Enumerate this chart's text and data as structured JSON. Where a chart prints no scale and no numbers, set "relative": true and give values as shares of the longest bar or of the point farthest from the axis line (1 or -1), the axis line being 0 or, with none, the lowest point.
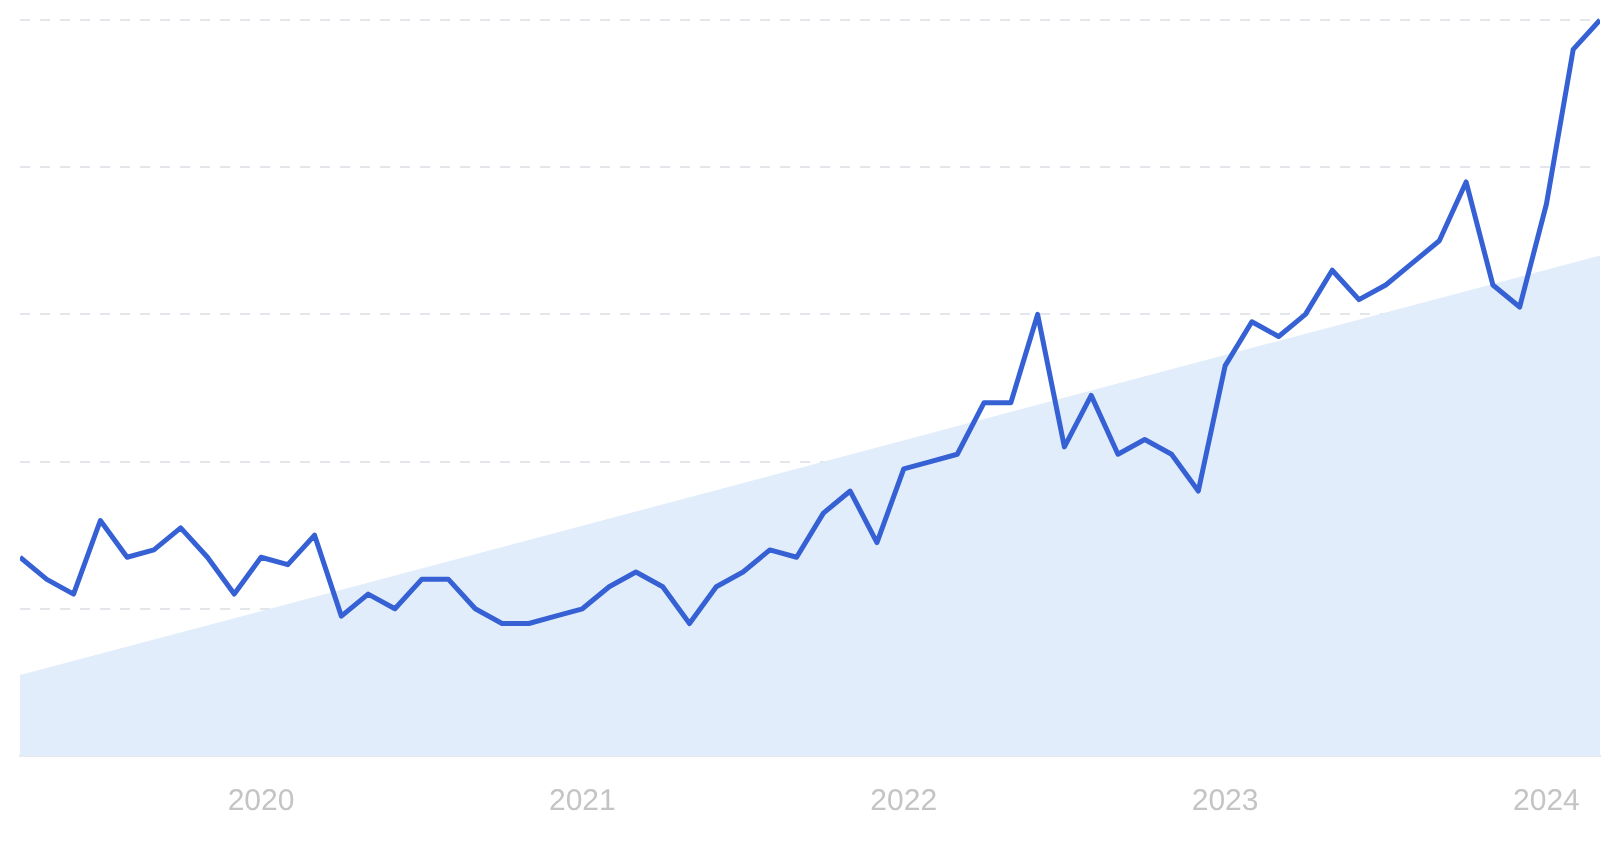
{
  "chart_data": {
    "type": "line",
    "relative": true,
    "grid": "y",
    "line_style": "solid",
    "marker": "none",
    "xlim": [
      "2019-04",
      "2024-03"
    ],
    "xticks": [
      "2020",
      "2021",
      "2022",
      "2023",
      "2024"
    ],
    "x": [
      "2019-04",
      "2019-05",
      "2019-06",
      "2019-07",
      "2019-08",
      "2019-09",
      "2019-10",
      "2019-11",
      "2019-12",
      "2020-01",
      "2020-02",
      "2020-03",
      "2020-04",
      "2020-05",
      "2020-06",
      "2020-07",
      "2020-08",
      "2020-09",
      "2020-10",
      "2020-11",
      "2020-12",
      "2021-01",
      "2021-02",
      "2021-03",
      "2021-04",
      "2021-05",
      "2021-06",
      "2021-07",
      "2021-08",
      "2021-09",
      "2021-10",
      "2021-11",
      "2021-12",
      "2022-01",
      "2022-02",
      "2022-03",
      "2022-04",
      "2022-05",
      "2022-06",
      "2022-07",
      "2022-08",
      "2022-09",
      "2022-10",
      "2022-11",
      "2022-12",
      "2023-01",
      "2023-02",
      "2023-03",
      "2023-04",
      "2023-05",
      "2023-06",
      "2023-07",
      "2023-08",
      "2023-09",
      "2023-10",
      "2023-11",
      "2023-12",
      "2024-01",
      "2024-02",
      "2024-03"
    ],
    "series": [
      {
        "type": "area",
        "color": "#e2edfb",
        "x": [
          "2019-04",
          "2024-03"
        ],
        "values": [
          0.11,
          0.68
        ]
      },
      {
        "color": "#3661d4",
        "values": [
          0.27,
          0.24,
          0.22,
          0.32,
          0.27,
          0.28,
          0.31,
          0.27,
          0.22,
          0.27,
          0.26,
          0.3,
          0.19,
          0.22,
          0.2,
          0.24,
          0.24,
          0.2,
          0.18,
          0.18,
          0.19,
          0.2,
          0.23,
          0.25,
          0.23,
          0.18,
          0.23,
          0.25,
          0.28,
          0.27,
          0.33,
          0.36,
          0.29,
          0.39,
          0.4,
          0.41,
          0.48,
          0.48,
          0.6,
          0.42,
          0.49,
          0.41,
          0.43,
          0.41,
          0.36,
          0.53,
          0.59,
          0.57,
          0.6,
          0.66,
          0.62,
          0.64,
          0.67,
          0.7,
          0.78,
          0.64,
          0.61,
          0.75,
          0.96,
          1.0
        ]
      }
    ]
  }
}
